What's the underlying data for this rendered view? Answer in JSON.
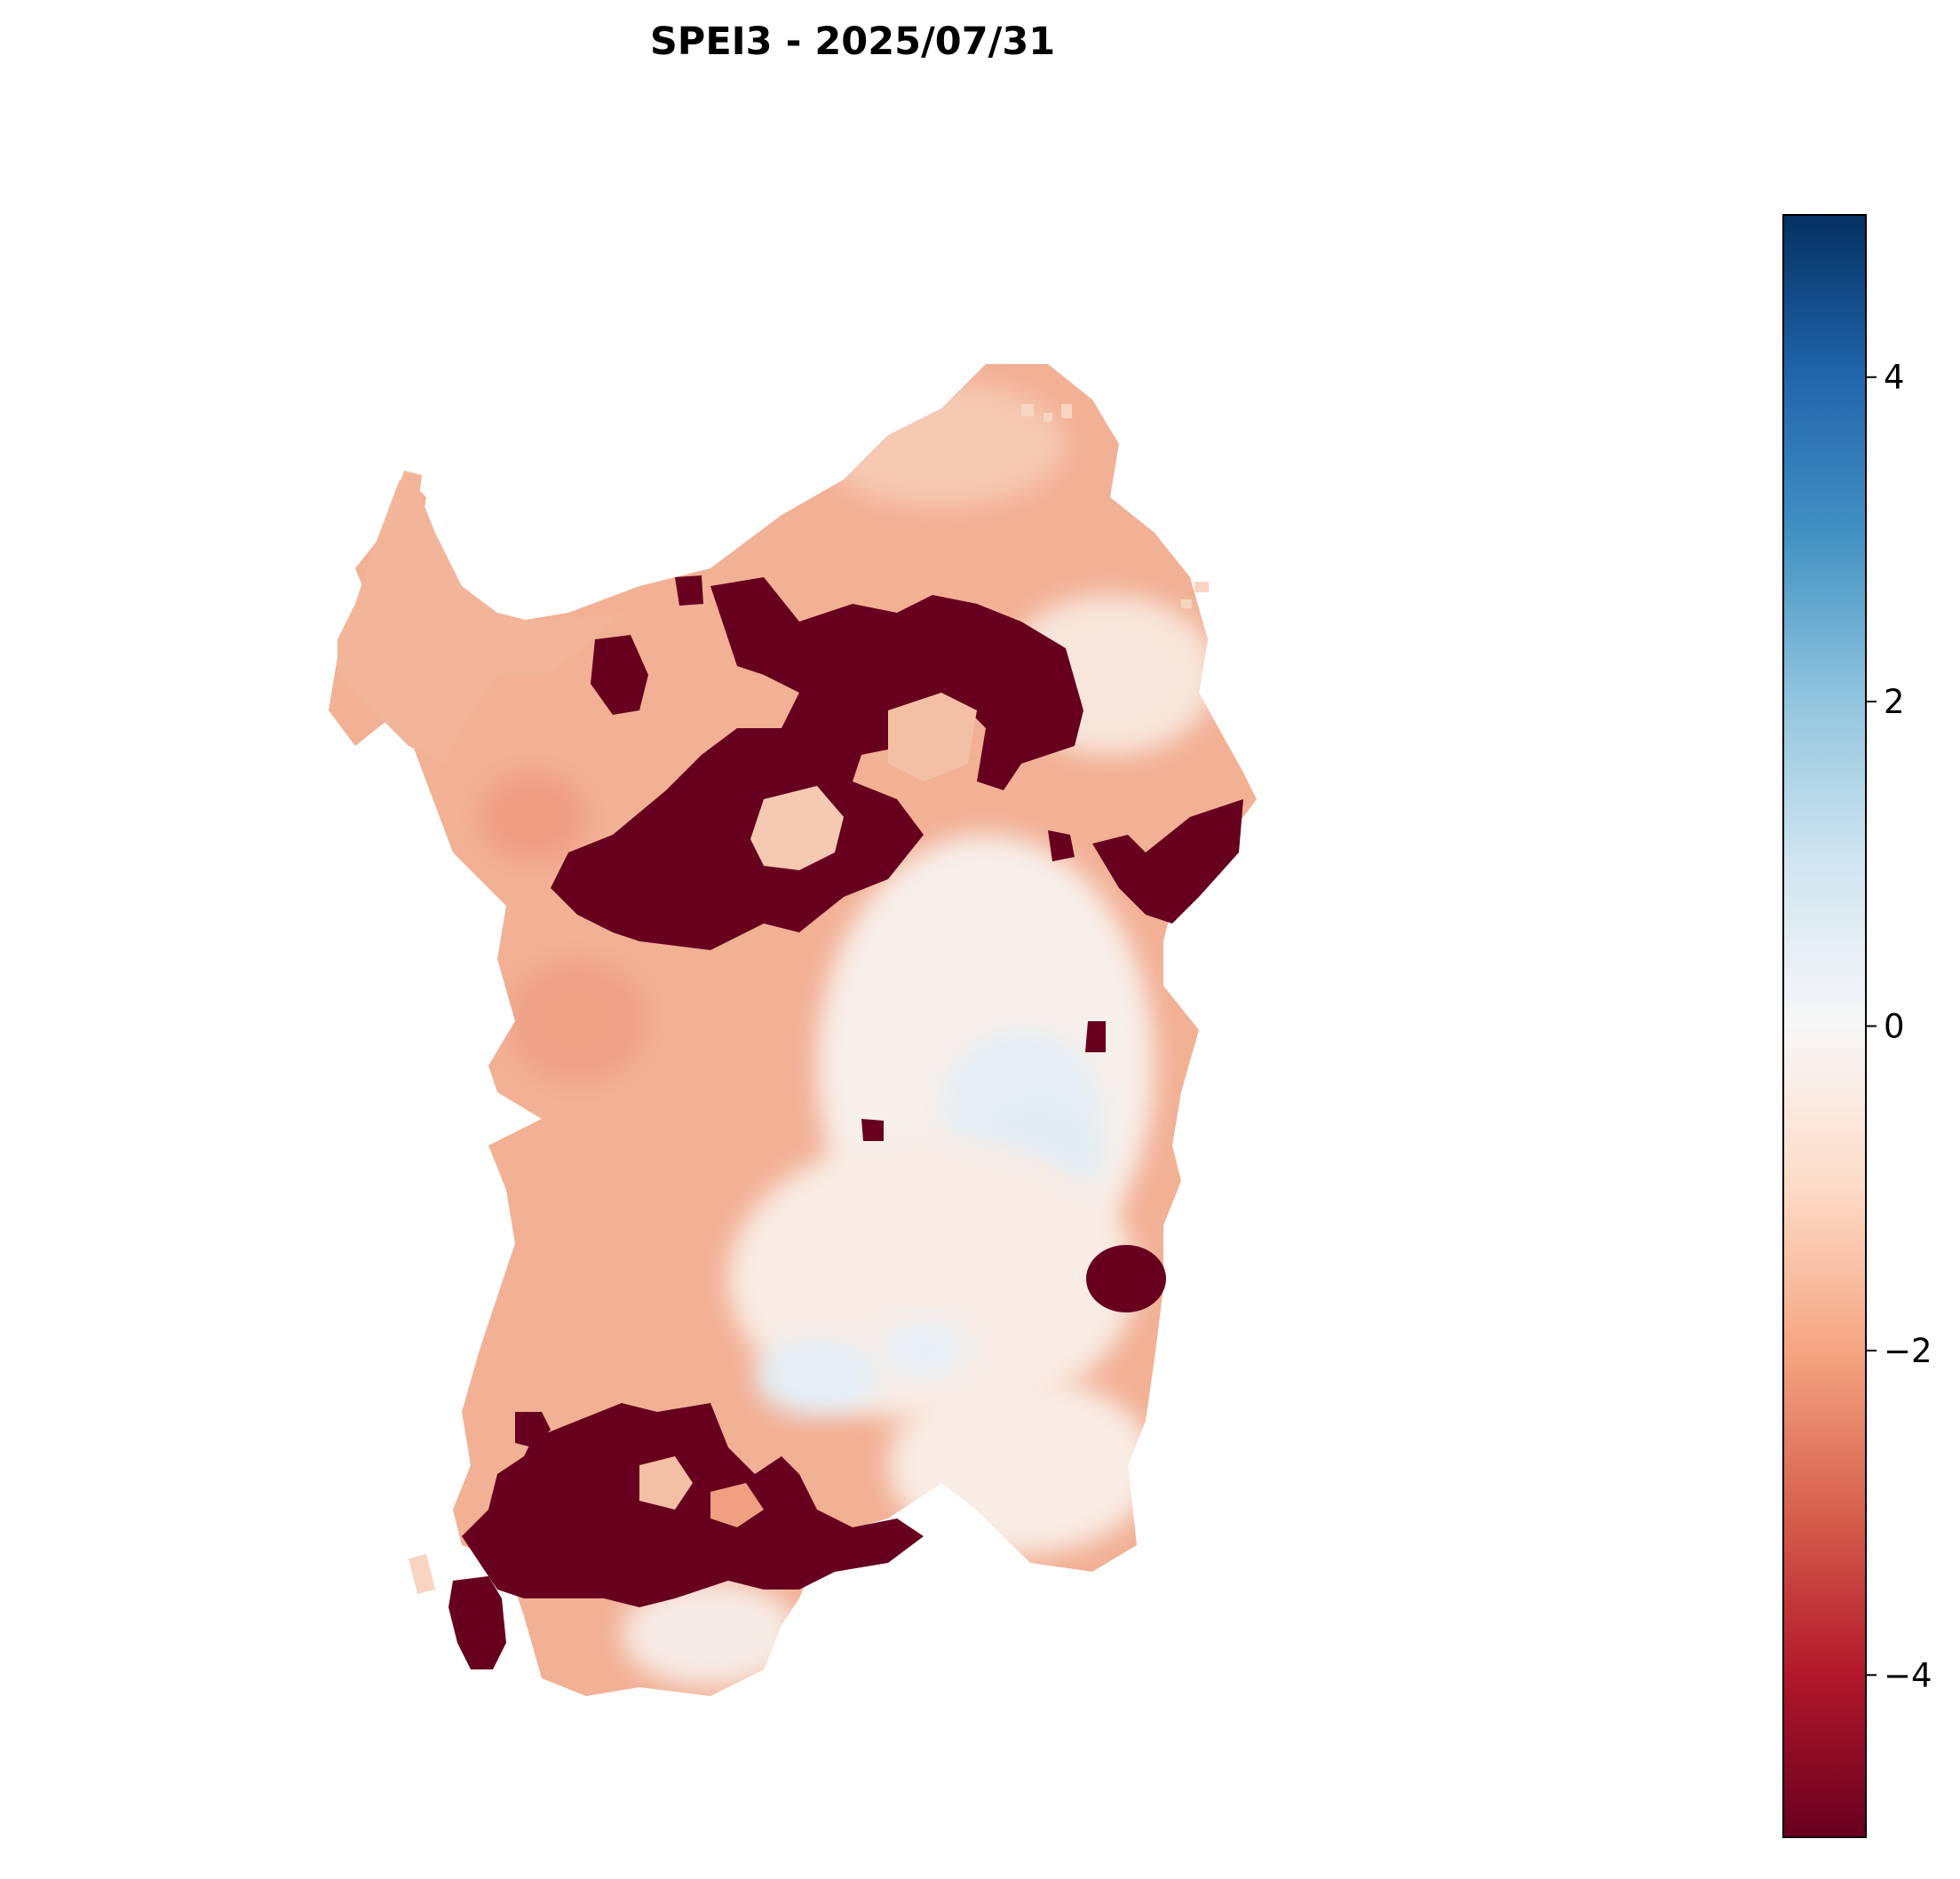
{
  "title": "SPEI3 - 2025/07/31",
  "colormap": {
    "name": "RdBu",
    "stops": [
      "#67001f",
      "#b2182b",
      "#d6604d",
      "#f4a582",
      "#fddbc7",
      "#f7f7f7",
      "#d1e5f0",
      "#92c5de",
      "#4393c3",
      "#2166ac",
      "#053061"
    ]
  },
  "chart_data": {
    "type": "heatmap",
    "title": "SPEI3 - 2025/07/31",
    "variable": "SPEI3",
    "date": "2025/07/31",
    "colorbar": {
      "range": [
        -5,
        5
      ],
      "ticks": [
        -4,
        -2,
        0,
        2,
        4
      ],
      "tick_labels": [
        "−4",
        "−2",
        "0",
        "2",
        "4"
      ]
    },
    "value_summary": {
      "extreme_drought_areas": "north-central band and south-west, value ≈ -5",
      "moderate_drought": "most of island, values ≈ -1.5 to -2",
      "near_normal": "east-central area, values ≈ 0 to +0.5"
    },
    "grid": false,
    "axes_visible": false
  }
}
